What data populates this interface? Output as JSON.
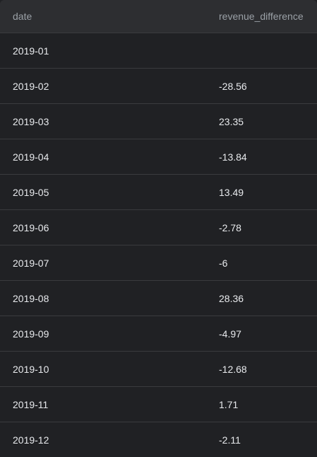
{
  "table": {
    "columns": [
      "date",
      "revenue_difference"
    ],
    "rows": [
      {
        "date": "2019-01",
        "revenue_difference": ""
      },
      {
        "date": "2019-02",
        "revenue_difference": "-28.56"
      },
      {
        "date": "2019-03",
        "revenue_difference": "23.35"
      },
      {
        "date": "2019-04",
        "revenue_difference": "-13.84"
      },
      {
        "date": "2019-05",
        "revenue_difference": "13.49"
      },
      {
        "date": "2019-06",
        "revenue_difference": "-2.78"
      },
      {
        "date": "2019-07",
        "revenue_difference": "-6"
      },
      {
        "date": "2019-08",
        "revenue_difference": "28.36"
      },
      {
        "date": "2019-09",
        "revenue_difference": "-4.97"
      },
      {
        "date": "2019-10",
        "revenue_difference": "-12.68"
      },
      {
        "date": "2019-11",
        "revenue_difference": "1.71"
      },
      {
        "date": "2019-12",
        "revenue_difference": "-2.11"
      }
    ]
  },
  "colors": {
    "background": "#202124",
    "header_background": "#2d2e31",
    "header_text": "#9aa0a6",
    "cell_text": "#e8eaed",
    "divider": "#3a3b3e"
  }
}
